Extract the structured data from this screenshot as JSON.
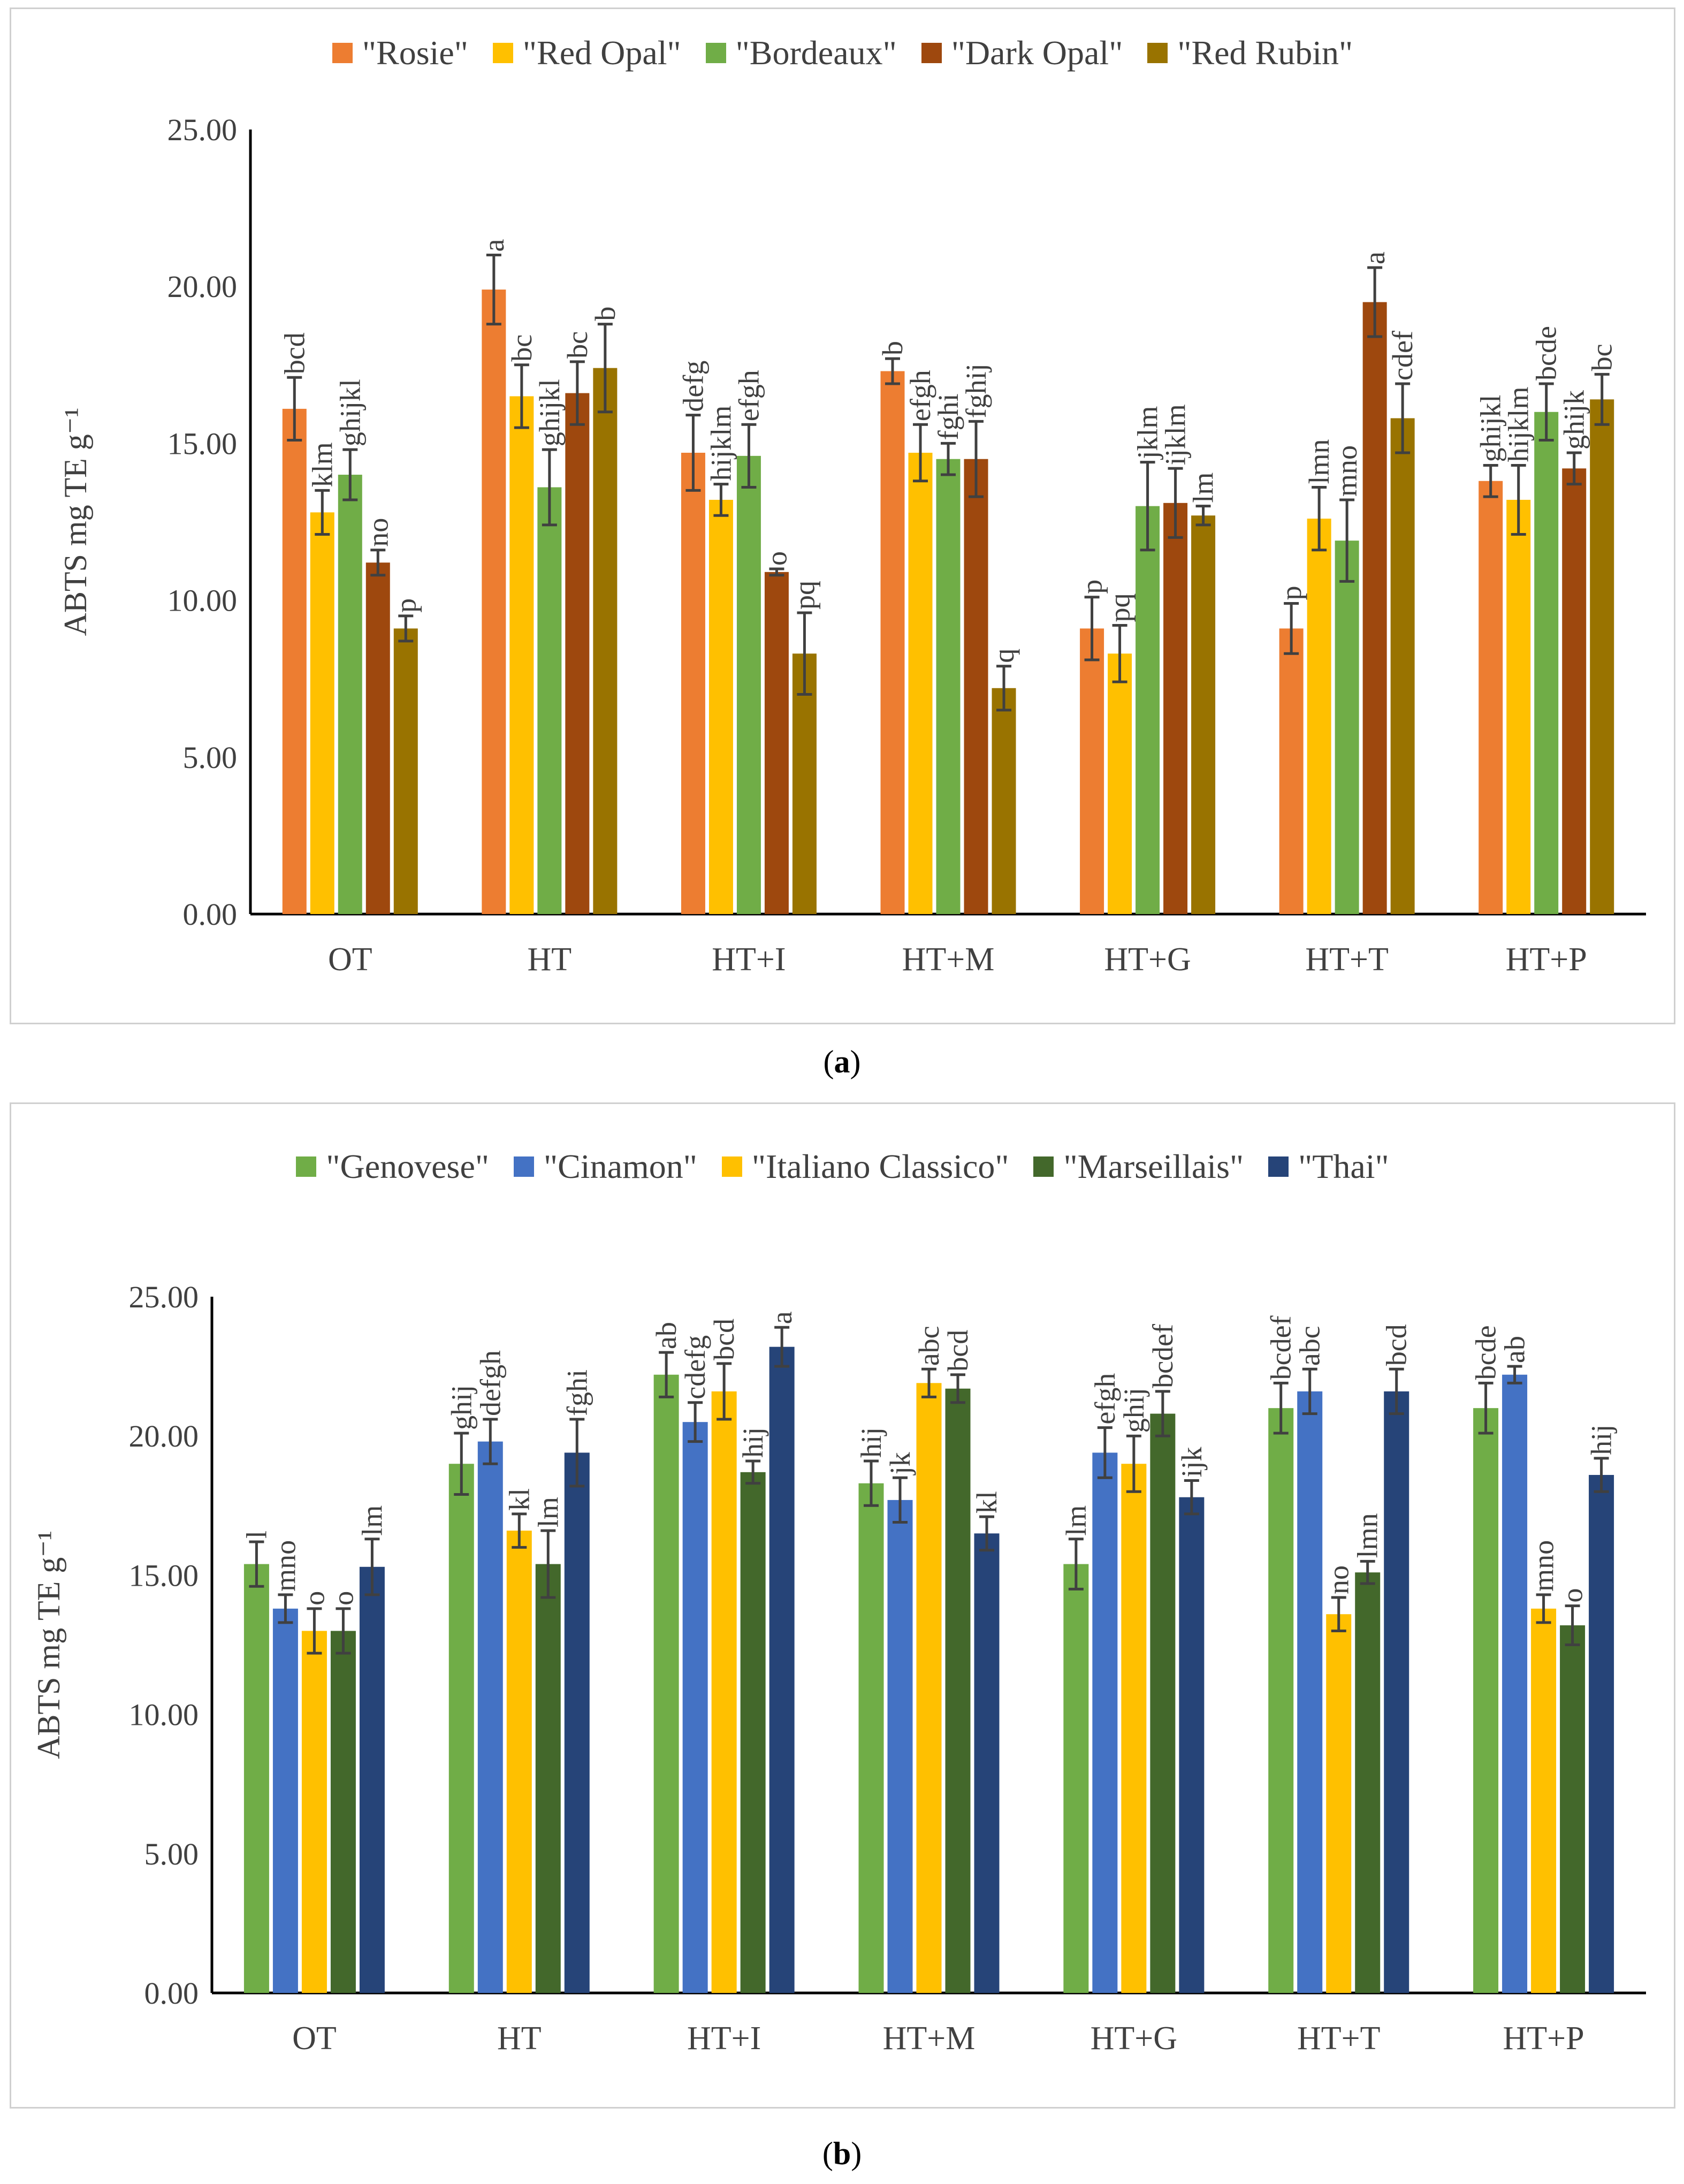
{
  "chart_data": [
    {
      "type": "bar",
      "id": "a",
      "caption_label": "a",
      "ylabel": "ABTS mg TE g⁻¹",
      "ylim": [
        0,
        25
      ],
      "yticks": [
        "0.00",
        "5.00",
        "10.00",
        "15.00",
        "20.00",
        "25.00"
      ],
      "categories": [
        "OT",
        "HT",
        "HT+I",
        "HT+M",
        "HT+G",
        "HT+T",
        "HT+P"
      ],
      "series": [
        {
          "name": "\"Rosie\"",
          "color": "#ED7D31",
          "values": [
            16.1,
            19.9,
            14.7,
            17.3,
            9.1,
            9.1,
            13.8
          ],
          "errors": [
            1.0,
            1.1,
            1.2,
            0.4,
            1.0,
            0.8,
            0.5
          ],
          "letters": [
            "bcd",
            "a",
            "defg",
            "b",
            "p",
            "p",
            "ghijkl"
          ]
        },
        {
          "name": "\"Red Opal\"",
          "color": "#FFC000",
          "values": [
            12.8,
            16.5,
            13.2,
            14.7,
            8.3,
            12.6,
            13.2
          ],
          "errors": [
            0.7,
            1.0,
            0.5,
            0.9,
            0.9,
            1.0,
            1.1
          ],
          "letters": [
            "klm",
            "bc",
            "hijklm",
            "efgh",
            "pq",
            "lmn",
            "hijklm"
          ]
        },
        {
          "name": "\"Bordeaux\"",
          "color": "#70AD47",
          "values": [
            14.0,
            13.6,
            14.6,
            14.5,
            13.0,
            11.9,
            16.0
          ],
          "errors": [
            0.8,
            1.2,
            1.0,
            0.5,
            1.4,
            1.3,
            0.9
          ],
          "letters": [
            "ghijkl",
            "ghijkl",
            "efgh",
            "fghi",
            "jklm",
            "mno",
            "bcde"
          ]
        },
        {
          "name": "\"Dark Opal\"",
          "color": "#9E480E",
          "values": [
            11.2,
            16.6,
            10.9,
            14.5,
            13.1,
            19.5,
            14.2
          ],
          "errors": [
            0.4,
            1.0,
            0.1,
            1.2,
            1.1,
            1.1,
            0.5
          ],
          "letters": [
            "no",
            "bc",
            "o",
            "fghij",
            "ijklm",
            "a",
            "ghijk"
          ]
        },
        {
          "name": "\"Red Rubin\"",
          "color": "#997300",
          "values": [
            9.1,
            17.4,
            8.3,
            7.2,
            12.7,
            15.8,
            16.4
          ],
          "errors": [
            0.4,
            1.4,
            1.3,
            0.7,
            0.3,
            1.1,
            0.8
          ],
          "letters": [
            "p",
            "b",
            "pq",
            "q",
            "lm",
            "cdef",
            "bc"
          ]
        }
      ]
    },
    {
      "type": "bar",
      "id": "b",
      "caption_label": "b",
      "ylabel": "ABTS mg TE g⁻¹",
      "ylim": [
        0,
        25
      ],
      "yticks": [
        "0.00",
        "5.00",
        "10.00",
        "15.00",
        "20.00",
        "25.00"
      ],
      "categories": [
        "OT",
        "HT",
        "HT+I",
        "HT+M",
        "HT+G",
        "HT+T",
        "HT+P"
      ],
      "series": [
        {
          "name": "\"Genovese\"",
          "color": "#70AD47",
          "values": [
            15.4,
            19.0,
            22.2,
            18.3,
            15.4,
            21.0,
            21.0
          ],
          "errors": [
            0.8,
            1.1,
            0.8,
            0.8,
            0.9,
            0.9,
            0.9
          ],
          "letters": [
            "l",
            "ghij",
            "ab",
            "hij",
            "lm",
            "bcdef",
            "bcde"
          ]
        },
        {
          "name": "\"Cinamon\"",
          "color": "#4472C4",
          "values": [
            13.8,
            19.8,
            20.5,
            17.7,
            19.4,
            21.6,
            22.2
          ],
          "errors": [
            0.5,
            0.8,
            0.7,
            0.8,
            0.9,
            0.8,
            0.3
          ],
          "letters": [
            "mno",
            "defgh",
            "cdefg",
            "jk",
            "efgh",
            "abc",
            "ab"
          ]
        },
        {
          "name": "\"Italiano Classico\"",
          "color": "#FFC000",
          "values": [
            13.0,
            16.6,
            21.6,
            21.9,
            19.0,
            13.6,
            13.8
          ],
          "errors": [
            0.8,
            0.6,
            1.0,
            0.5,
            1.0,
            0.6,
            0.5
          ],
          "letters": [
            "o",
            "kl",
            "bcd",
            "abc",
            "ghij",
            "no",
            "mno"
          ]
        },
        {
          "name": "\"Marseillais\"",
          "color": "#43682B",
          "values": [
            13.0,
            15.4,
            18.7,
            21.7,
            20.8,
            15.1,
            13.2
          ],
          "errors": [
            0.8,
            1.2,
            0.4,
            0.5,
            0.8,
            0.4,
            0.7
          ],
          "letters": [
            "o",
            "lm",
            "hij",
            "bcd",
            "bcdef",
            "lmn",
            "o"
          ]
        },
        {
          "name": "\"Thai\"",
          "color": "#264478",
          "values": [
            15.3,
            19.4,
            23.2,
            16.5,
            17.8,
            21.6,
            18.6
          ],
          "errors": [
            1.0,
            1.2,
            0.7,
            0.6,
            0.6,
            0.8,
            0.6
          ],
          "letters": [
            "lm",
            "fghi",
            "a",
            "kl",
            "ijk",
            "bcd",
            "hij"
          ]
        }
      ]
    }
  ]
}
